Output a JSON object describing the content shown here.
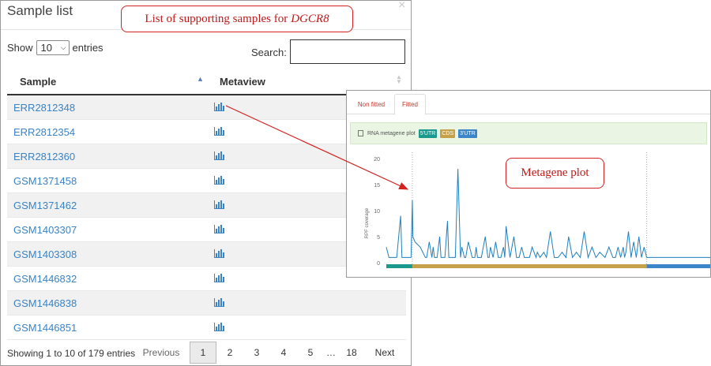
{
  "sample_list": {
    "title": "Sample list",
    "close": "×",
    "show_label": "Show",
    "entries_value": "10",
    "entries_label": "entries",
    "search_label": "Search:",
    "search_value": "",
    "columns": [
      "Sample",
      "Metaview"
    ],
    "rows": [
      {
        "sample": "ERR2812348",
        "metaview_icon": "bar-chart-icon"
      },
      {
        "sample": "ERR2812354",
        "metaview_icon": "bar-chart-icon"
      },
      {
        "sample": "ERR2812360",
        "metaview_icon": "bar-chart-icon"
      },
      {
        "sample": "GSM1371458",
        "metaview_icon": "bar-chart-icon"
      },
      {
        "sample": "GSM1371462",
        "metaview_icon": "bar-chart-icon"
      },
      {
        "sample": "GSM1403307",
        "metaview_icon": "bar-chart-icon"
      },
      {
        "sample": "GSM1403308",
        "metaview_icon": "bar-chart-icon"
      },
      {
        "sample": "GSM1446832",
        "metaview_icon": "bar-chart-icon"
      },
      {
        "sample": "GSM1446838",
        "metaview_icon": "bar-chart-icon"
      },
      {
        "sample": "GSM1446851",
        "metaview_icon": "bar-chart-icon"
      }
    ],
    "info": "Showing 1 to 10 of 179 entries",
    "pagination": {
      "previous": "Previous",
      "pages": [
        "1",
        "2",
        "3",
        "4",
        "5",
        "…",
        "18"
      ],
      "current": "1",
      "next": "Next"
    }
  },
  "callouts": {
    "list": {
      "text": "List of supporting samples for",
      "gene": "DGCR8"
    },
    "plot": "Metagene plot"
  },
  "metaview": {
    "tabs": [
      "Non fitted",
      "Fitted"
    ],
    "active_tab": "Fitted",
    "legend_label": "RNA metagene plot",
    "badges": [
      "5'UTR",
      "CDS",
      "3'UTR"
    ],
    "colors": {
      "utr5": "#1a9a8e",
      "cds": "#c5a24a",
      "utr3": "#3b86c9",
      "line": "#1f7fbf",
      "annotation": "#d42020"
    }
  },
  "chart_data": {
    "type": "line",
    "ylabel": "RPF coverage",
    "yticks": [
      "0",
      "5",
      "10",
      "15",
      "20"
    ],
    "ylim": [
      0,
      20
    ],
    "grid": false,
    "regions": [
      {
        "name": "5'UTR",
        "x_start": 0,
        "x_end": 100
      },
      {
        "name": "CDS",
        "x_start": 100,
        "x_end": 1000
      },
      {
        "name": "3'UTR",
        "x_start": 1000,
        "x_end": 1250
      }
    ],
    "series": [
      {
        "x": [
          0,
          10,
          20,
          40,
          55,
          60,
          65,
          70,
          75,
          85,
          95,
          100,
          102,
          110,
          130,
          150,
          155,
          165,
          175,
          180,
          185,
          195,
          205,
          210,
          215,
          225,
          235,
          240,
          245,
          255,
          260,
          265,
          275,
          285,
          290,
          300,
          305,
          315,
          330,
          340,
          345,
          350,
          365,
          380,
          390,
          395,
          400,
          410,
          420,
          430,
          440,
          450,
          455,
          460,
          475,
          490,
          500,
          510,
          520,
          530,
          540,
          550,
          560,
          575,
          580,
          590,
          605,
          615,
          630,
          645,
          660,
          675,
          690,
          700,
          715,
          730,
          745,
          760,
          775,
          790,
          805,
          820,
          840,
          855,
          870,
          880,
          890,
          900,
          910,
          915,
          920,
          930,
          940,
          950,
          960,
          970,
          980,
          990,
          1000,
          1020,
          1050,
          1100,
          1150,
          1200,
          1250
        ],
        "y": [
          3,
          1,
          1,
          1,
          9,
          1,
          1,
          1,
          1,
          1,
          1,
          12,
          5,
          4,
          3,
          1,
          1,
          4,
          1,
          3,
          1,
          1,
          5,
          1,
          1,
          1,
          8,
          1,
          1,
          1,
          1,
          1,
          18,
          1,
          3,
          1,
          1,
          4,
          1,
          1,
          3,
          1,
          1,
          5,
          1,
          1,
          3,
          1,
          4,
          1,
          1,
          3,
          1,
          7,
          1,
          5,
          1,
          1,
          3,
          1,
          1,
          1,
          3,
          1,
          2,
          1,
          2,
          1,
          6,
          1,
          1,
          2,
          1,
          5,
          1,
          2,
          1,
          6,
          1,
          3,
          1,
          2,
          1,
          3,
          1,
          1,
          3,
          1,
          3,
          1,
          2,
          6,
          1,
          4,
          1,
          5,
          1,
          3,
          1,
          1,
          1,
          1,
          1,
          1,
          1
        ]
      }
    ]
  }
}
